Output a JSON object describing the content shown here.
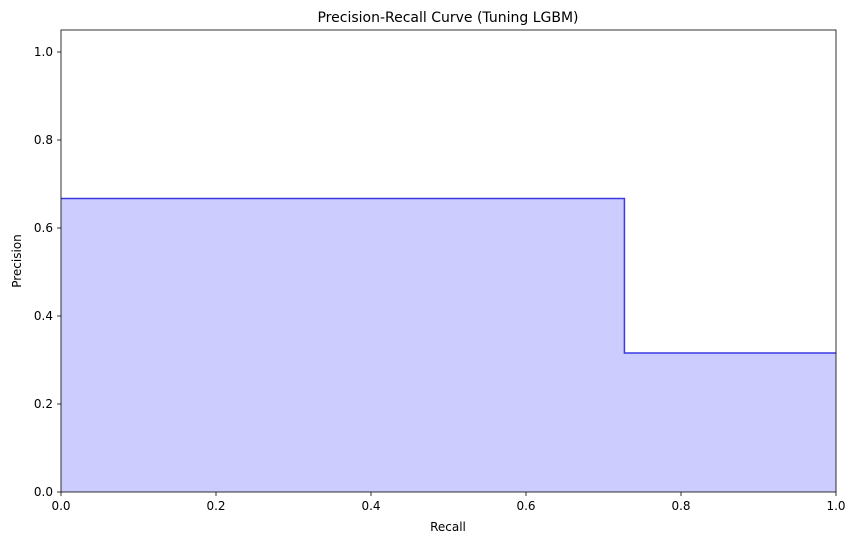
{
  "chart_data": {
    "type": "area",
    "title": "Precision-Recall Curve (Tuning LGBM)",
    "xlabel": "Recall",
    "ylabel": "Precision",
    "xlim": [
      0.0,
      1.0
    ],
    "ylim": [
      0.0,
      1.05
    ],
    "xticks": [
      "0.0",
      "0.2",
      "0.4",
      "0.6",
      "0.8",
      "1.0"
    ],
    "yticks": [
      "0.0",
      "0.2",
      "0.4",
      "0.6",
      "0.8",
      "1.0"
    ],
    "step": "post",
    "grid": false,
    "series": [
      {
        "x": [
          0.0,
          0.727,
          1.0
        ],
        "y": [
          0.667,
          0.316,
          0.316
        ],
        "line_color": "#3a3ae0",
        "fill_color": "#ccccff"
      }
    ]
  }
}
